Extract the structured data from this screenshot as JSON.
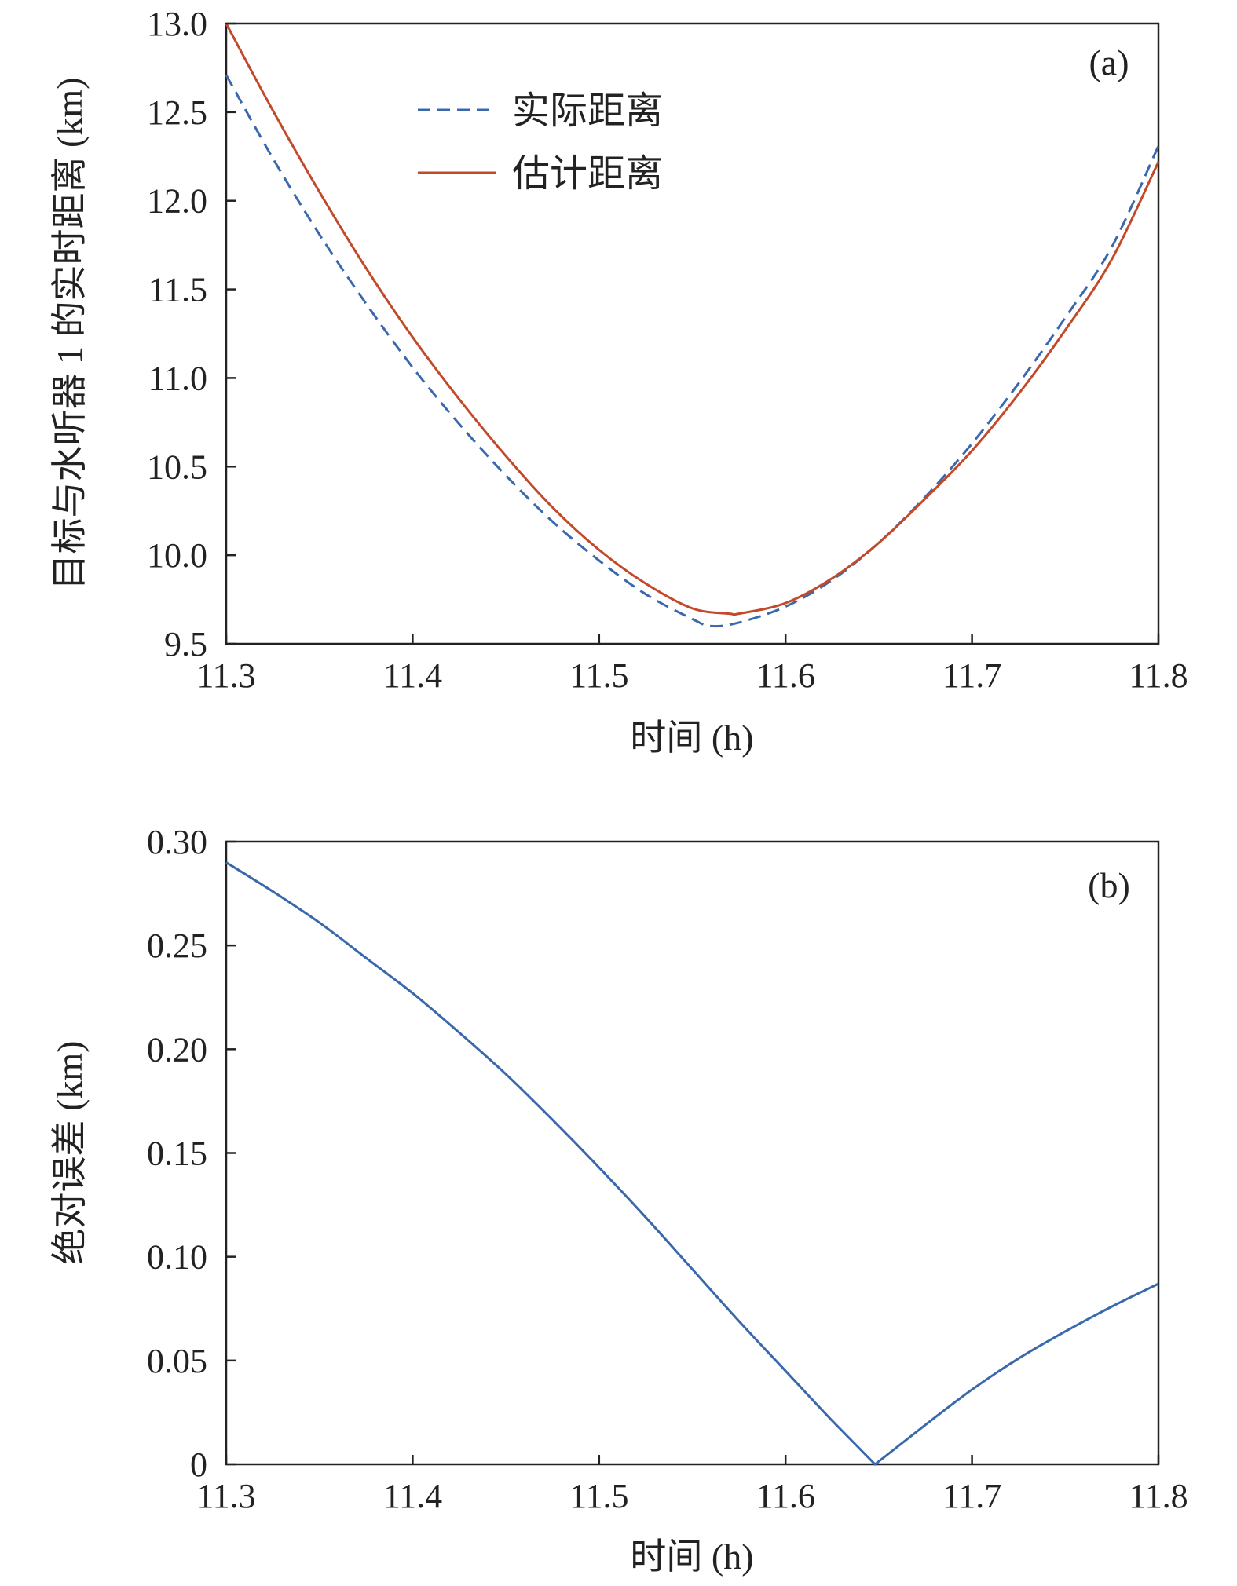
{
  "chart_data": [
    {
      "type": "line",
      "panel_label": "(a)",
      "xlabel": "时间 (h)",
      "ylabel": "目标与水听器 1 的实时距离 (km)",
      "xlim": [
        11.3,
        11.8
      ],
      "ylim": [
        9.5,
        13.0
      ],
      "xticks": [
        "11.3",
        "11.4",
        "11.5",
        "11.6",
        "11.7",
        "11.8"
      ],
      "yticks": [
        "9.5",
        "10.0",
        "10.5",
        "11.0",
        "11.5",
        "12.0",
        "12.5",
        "13.0"
      ],
      "grid": false,
      "legend_position": "top-center",
      "series": [
        {
          "name": "实际距离",
          "color": "#3a68ad",
          "style": "dashed",
          "x": [
            11.3,
            11.325,
            11.35,
            11.375,
            11.4,
            11.425,
            11.45,
            11.475,
            11.5,
            11.525,
            11.55,
            11.56,
            11.575,
            11.6,
            11.625,
            11.65,
            11.675,
            11.7,
            11.725,
            11.75,
            11.775,
            11.8
          ],
          "y": [
            12.71,
            12.24,
            11.81,
            11.42,
            11.06,
            10.74,
            10.45,
            10.19,
            9.97,
            9.78,
            9.64,
            9.6,
            9.62,
            9.71,
            9.86,
            10.07,
            10.33,
            10.63,
            10.97,
            11.34,
            11.74,
            12.31
          ]
        },
        {
          "name": "估计距离",
          "color": "#c24a2b",
          "style": "solid",
          "x": [
            11.3,
            11.325,
            11.35,
            11.375,
            11.4,
            11.425,
            11.45,
            11.475,
            11.5,
            11.525,
            11.55,
            11.57,
            11.575,
            11.6,
            11.625,
            11.65,
            11.675,
            11.7,
            11.725,
            11.75,
            11.775,
            11.8
          ],
          "y": [
            13.0,
            12.51,
            12.05,
            11.62,
            11.23,
            10.88,
            10.56,
            10.27,
            10.03,
            9.84,
            9.7,
            9.67,
            9.67,
            9.73,
            9.87,
            10.07,
            10.32,
            10.59,
            10.91,
            11.27,
            11.67,
            12.22
          ]
        }
      ]
    },
    {
      "type": "line",
      "panel_label": "(b)",
      "xlabel": "时间 (h)",
      "ylabel": "绝对误差 (km)",
      "xlim": [
        11.3,
        11.8
      ],
      "ylim": [
        0,
        0.3
      ],
      "xticks": [
        "11.3",
        "11.4",
        "11.5",
        "11.6",
        "11.7",
        "11.8"
      ],
      "yticks": [
        "0",
        "0.05",
        "0.10",
        "0.15",
        "0.20",
        "0.25",
        "0.30"
      ],
      "grid": false,
      "series": [
        {
          "color": "#3a68ad",
          "style": "solid",
          "x": [
            11.3,
            11.325,
            11.35,
            11.375,
            11.4,
            11.425,
            11.45,
            11.475,
            11.5,
            11.525,
            11.55,
            11.575,
            11.6,
            11.625,
            11.648,
            11.675,
            11.7,
            11.725,
            11.75,
            11.775,
            11.8
          ],
          "y": [
            0.29,
            0.276,
            0.261,
            0.244,
            0.227,
            0.208,
            0.188,
            0.166,
            0.143,
            0.119,
            0.094,
            0.069,
            0.045,
            0.021,
            0.0,
            0.019,
            0.036,
            0.051,
            0.064,
            0.076,
            0.087
          ]
        }
      ]
    }
  ]
}
